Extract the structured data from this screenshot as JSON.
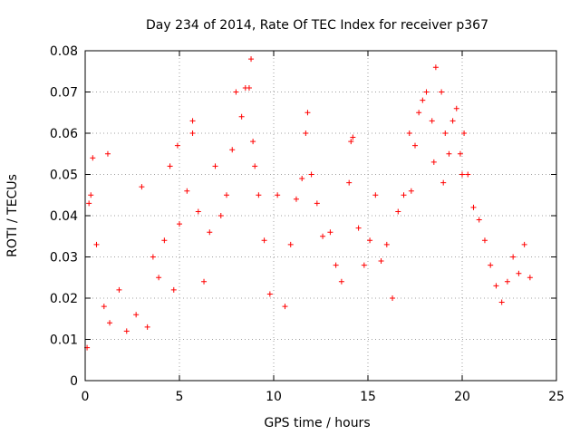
{
  "chart_data": {
    "type": "scatter",
    "title": "Day 234 of 2014, Rate Of TEC Index for receiver p367",
    "xlabel": "GPS time / hours",
    "ylabel": "ROTI / TECUs",
    "xlim": [
      0,
      25
    ],
    "ylim": [
      0,
      0.08
    ],
    "xticks": [
      0,
      5,
      10,
      15,
      20,
      25
    ],
    "xtick_labels": [
      "0",
      "5",
      "10",
      "15",
      "20",
      "25"
    ],
    "yticks": [
      0,
      0.01,
      0.02,
      0.03,
      0.04,
      0.05,
      0.06,
      0.07,
      0.08
    ],
    "ytick_labels": [
      "0",
      "0.01",
      "0.02",
      "0.03",
      "0.04",
      "0.05",
      "0.06",
      "0.07",
      "0.08"
    ],
    "grid": true,
    "marker": "+",
    "colors": {
      "series": "#ff0000",
      "grid": "#a0a0a0",
      "axis": "#000000"
    },
    "series": [
      {
        "x": [
          0.1,
          0.2,
          0.3,
          0.4,
          0.6,
          1.0,
          1.3,
          1.8,
          2.2,
          2.7,
          3.0,
          3.3,
          3.6,
          3.9,
          4.2,
          4.5,
          4.7,
          5.0,
          5.4,
          5.7,
          6.0,
          6.3,
          6.6,
          6.9,
          7.2,
          7.5,
          7.8,
          8.0,
          8.3,
          8.5,
          8.7,
          8.8,
          9.0,
          9.2,
          9.5,
          9.8,
          10.2,
          10.6,
          10.9,
          11.2,
          11.5,
          11.8,
          12.0,
          12.3,
          12.6,
          13.0,
          13.3,
          13.6,
          14.0,
          14.2,
          14.5,
          14.8,
          15.1,
          15.4,
          15.7,
          16.0,
          16.3,
          16.6,
          16.9,
          17.2,
          17.5,
          17.7,
          17.9,
          18.1,
          18.4,
          18.6,
          18.9,
          19.1,
          19.3,
          19.5,
          19.7,
          19.9,
          20.1,
          20.3,
          20.6,
          20.9,
          21.2,
          21.5,
          21.8,
          22.1,
          22.4,
          22.7,
          23.0,
          23.3,
          23.6,
          8.9,
          18.5,
          11.7,
          5.7,
          4.9,
          17.3,
          19.0,
          20.0,
          14.1,
          1.2
        ],
        "y": [
          0.008,
          0.043,
          0.045,
          0.054,
          0.033,
          0.018,
          0.014,
          0.022,
          0.012,
          0.016,
          0.047,
          0.013,
          0.03,
          0.025,
          0.034,
          0.052,
          0.022,
          0.038,
          0.046,
          0.06,
          0.041,
          0.024,
          0.036,
          0.052,
          0.04,
          0.045,
          0.056,
          0.07,
          0.064,
          0.071,
          0.071,
          0.078,
          0.052,
          0.045,
          0.034,
          0.021,
          0.045,
          0.018,
          0.033,
          0.044,
          0.049,
          0.065,
          0.05,
          0.043,
          0.035,
          0.036,
          0.028,
          0.024,
          0.048,
          0.059,
          0.037,
          0.028,
          0.034,
          0.045,
          0.029,
          0.033,
          0.02,
          0.041,
          0.045,
          0.06,
          0.057,
          0.065,
          0.068,
          0.07,
          0.063,
          0.076,
          0.07,
          0.06,
          0.055,
          0.063,
          0.066,
          0.055,
          0.06,
          0.05,
          0.042,
          0.039,
          0.034,
          0.028,
          0.023,
          0.019,
          0.024,
          0.03,
          0.026,
          0.033,
          0.025,
          0.058,
          0.053,
          0.06,
          0.063,
          0.057,
          0.046,
          0.048,
          0.05,
          0.058,
          0.055
        ]
      }
    ]
  }
}
